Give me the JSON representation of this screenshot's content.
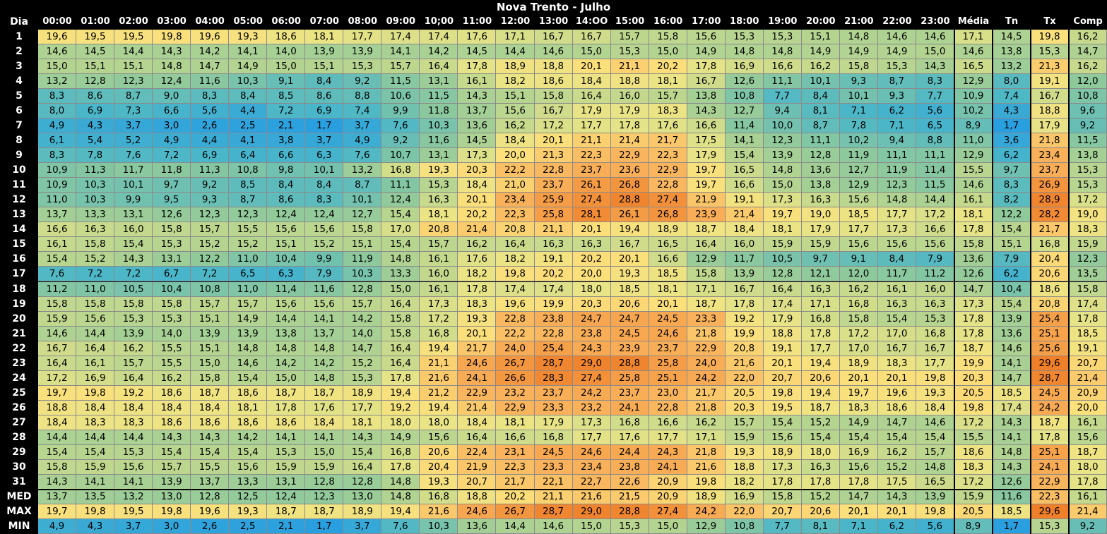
{
  "title": "Nova Trento - Julho",
  "chart_data": {
    "type": "table",
    "title": "Nova Trento - Julho",
    "row_header": "Dia",
    "columns": [
      "00:00",
      "01:00",
      "02:00",
      "03:00",
      "04:00",
      "05:00",
      "06:00",
      "07:00",
      "08:00",
      "09:00",
      "10;00",
      "11:00",
      "12:00",
      "13:00",
      "14:OO",
      "15:00",
      "16:00",
      "17:00",
      "18:00",
      "19:00",
      "20:00",
      "21:00",
      "22:00",
      "23:00",
      "Média",
      "Tn",
      "Tx",
      "Comp"
    ],
    "rows": [
      {
        "label": "1",
        "values": [
          "19,6",
          "19,5",
          "19,5",
          "19,8",
          "19,6",
          "19,3",
          "18,6",
          "18,1",
          "17,7",
          "17,4",
          "17,4",
          "17,6",
          "17,1",
          "16,7",
          "16,7",
          "15,7",
          "15,8",
          "15,6",
          "15,3",
          "15,3",
          "15,1",
          "14,8",
          "14,6",
          "14,6",
          "17,1",
          "14,5",
          "19,8",
          "16,2"
        ]
      },
      {
        "label": "2",
        "values": [
          "14,6",
          "14,5",
          "14,4",
          "14,3",
          "14,2",
          "14,1",
          "14,0",
          "13,9",
          "13,9",
          "14,1",
          "14,2",
          "14,5",
          "14,4",
          "14,6",
          "15,0",
          "15,3",
          "15,0",
          "14,9",
          "14,8",
          "14,8",
          "14,9",
          "14,9",
          "14,9",
          "15,0",
          "14,6",
          "13,8",
          "15,3",
          "14,7"
        ]
      },
      {
        "label": "3",
        "values": [
          "15,0",
          "15,1",
          "15,1",
          "14,8",
          "14,7",
          "14,9",
          "15,0",
          "15,1",
          "15,3",
          "15,7",
          "16,4",
          "17,8",
          "18,9",
          "18,8",
          "20,1",
          "21,1",
          "20,2",
          "17,8",
          "16,9",
          "16,6",
          "16,2",
          "15,8",
          "15,3",
          "14,3",
          "16,5",
          "13,2",
          "21,3",
          "16,2"
        ]
      },
      {
        "label": "4",
        "values": [
          "13,2",
          "12,8",
          "12,3",
          "12,4",
          "11,6",
          "10,3",
          "9,1",
          "8,4",
          "9,2",
          "11,5",
          "13,1",
          "16,1",
          "18,2",
          "18,6",
          "18,4",
          "18,8",
          "18,1",
          "16,7",
          "12,6",
          "11,1",
          "10,1",
          "9,3",
          "8,7",
          "8,3",
          "12,9",
          "8,0",
          "19,1",
          "12,0"
        ]
      },
      {
        "label": "5",
        "values": [
          "8,3",
          "8,6",
          "8,7",
          "9,0",
          "8,3",
          "8,4",
          "8,5",
          "8,6",
          "8,8",
          "10,6",
          "11,5",
          "14,3",
          "15,1",
          "15,8",
          "16,4",
          "16,0",
          "15,7",
          "13,8",
          "10,8",
          "7,7",
          "8,4",
          "10,1",
          "9,3",
          "7,7",
          "10,9",
          "7,4",
          "16,7",
          "10,8"
        ]
      },
      {
        "label": "6",
        "values": [
          "8,0",
          "6,9",
          "7,3",
          "6,6",
          "5,6",
          "4,4",
          "7,2",
          "6,9",
          "7,4",
          "9,9",
          "11,8",
          "13,7",
          "15,6",
          "16,7",
          "17,9",
          "17,9",
          "18,3",
          "14,3",
          "12,7",
          "9,4",
          "8,1",
          "7,1",
          "6,2",
          "5,6",
          "10,2",
          "4,3",
          "18,8",
          "9,6"
        ]
      },
      {
        "label": "7",
        "values": [
          "4,9",
          "4,3",
          "3,7",
          "3,0",
          "2,6",
          "2,5",
          "2,1",
          "1,7",
          "3,7",
          "7,6",
          "10,3",
          "13,6",
          "16,2",
          "17,2",
          "17,7",
          "17,8",
          "17,6",
          "16,6",
          "11,4",
          "10,0",
          "8,7",
          "7,8",
          "7,1",
          "6,5",
          "8,9",
          "1,7",
          "17,9",
          "9,2"
        ]
      },
      {
        "label": "8",
        "values": [
          "6,1",
          "5,4",
          "5,2",
          "4,9",
          "4,4",
          "4,1",
          "3,8",
          "3,7",
          "4,9",
          "9,2",
          "11,6",
          "14,5",
          "18,4",
          "20,1",
          "21,1",
          "21,4",
          "21,7",
          "17,5",
          "14,1",
          "12,3",
          "11,1",
          "10,2",
          "9,4",
          "8,8",
          "11,0",
          "3,6",
          "21,8",
          "11,5"
        ]
      },
      {
        "label": "9",
        "values": [
          "8,3",
          "7,8",
          "7,6",
          "7,2",
          "6,9",
          "6,4",
          "6,6",
          "6,3",
          "7,6",
          "10,7",
          "13,1",
          "17,3",
          "20,0",
          "21,3",
          "22,3",
          "22,9",
          "22,3",
          "17,9",
          "15,4",
          "13,9",
          "12,8",
          "11,9",
          "11,1",
          "11,1",
          "12,9",
          "6,2",
          "23,4",
          "13,8"
        ]
      },
      {
        "label": "10",
        "values": [
          "10,9",
          "11,3",
          "11,7",
          "11,8",
          "11,3",
          "10,8",
          "9,8",
          "10,1",
          "13,2",
          "16,8",
          "19,3",
          "20,3",
          "22,2",
          "22,8",
          "23,7",
          "23,6",
          "22,9",
          "19,7",
          "16,5",
          "14,8",
          "13,6",
          "12,7",
          "11,9",
          "11,4",
          "15,5",
          "9,7",
          "23,7",
          "15,3"
        ]
      },
      {
        "label": "11",
        "values": [
          "10,9",
          "10,3",
          "10,1",
          "9,7",
          "9,2",
          "8,5",
          "8,4",
          "8,4",
          "8,7",
          "11,1",
          "15,3",
          "18,4",
          "21,0",
          "23,7",
          "26,1",
          "26,8",
          "22,8",
          "19,7",
          "16,6",
          "15,0",
          "13,8",
          "12,9",
          "12,3",
          "11,5",
          "14,6",
          "8,3",
          "26,9",
          "15,3"
        ]
      },
      {
        "label": "12",
        "values": [
          "11,0",
          "10,3",
          "9,9",
          "9,5",
          "9,3",
          "8,7",
          "8,6",
          "8,3",
          "10,1",
          "12,4",
          "16,3",
          "20,1",
          "23,4",
          "25,9",
          "27,4",
          "28,8",
          "27,4",
          "21,9",
          "19,1",
          "17,3",
          "16,3",
          "15,6",
          "14,8",
          "14,4",
          "16,1",
          "8,2",
          "28,9",
          "17,2"
        ]
      },
      {
        "label": "13",
        "values": [
          "13,7",
          "13,3",
          "13,1",
          "12,6",
          "12,3",
          "12,3",
          "12,4",
          "12,4",
          "12,7",
          "15,4",
          "18,1",
          "20,2",
          "22,3",
          "25,8",
          "28,1",
          "26,1",
          "26,8",
          "23,9",
          "21,4",
          "19,7",
          "19,0",
          "18,5",
          "17,7",
          "17,2",
          "18,1",
          "12,2",
          "28,2",
          "19,0"
        ]
      },
      {
        "label": "14",
        "values": [
          "16,6",
          "16,3",
          "16,0",
          "15,8",
          "15,7",
          "15,5",
          "15,6",
          "15,6",
          "15,8",
          "17,0",
          "20,8",
          "21,4",
          "20,8",
          "21,1",
          "20,1",
          "19,4",
          "18,9",
          "18,7",
          "18,4",
          "18,1",
          "17,9",
          "17,7",
          "17,3",
          "16,6",
          "17,8",
          "15,4",
          "21,7",
          "18,3"
        ]
      },
      {
        "label": "15",
        "values": [
          "16,1",
          "15,8",
          "15,4",
          "15,3",
          "15,2",
          "15,2",
          "15,1",
          "15,2",
          "15,1",
          "15,4",
          "15,7",
          "16,2",
          "16,4",
          "16,3",
          "16,3",
          "16,7",
          "16,5",
          "16,4",
          "16,0",
          "15,9",
          "15,9",
          "15,6",
          "15,6",
          "15,6",
          "15,8",
          "15,1",
          "16,8",
          "15,9"
        ]
      },
      {
        "label": "16",
        "values": [
          "15,4",
          "15,2",
          "14,3",
          "13,1",
          "12,2",
          "11,0",
          "10,4",
          "9,9",
          "11,9",
          "14,8",
          "16,1",
          "17,6",
          "18,2",
          "19,1",
          "20,2",
          "20,1",
          "16,6",
          "12,9",
          "11,7",
          "10,5",
          "9,7",
          "9,1",
          "8,4",
          "7,9",
          "13,6",
          "7,9",
          "20,4",
          "12,3"
        ]
      },
      {
        "label": "17",
        "values": [
          "7,6",
          "7,2",
          "7,2",
          "6,7",
          "7,2",
          "6,5",
          "6,3",
          "7,9",
          "10,3",
          "13,3",
          "16,0",
          "18,2",
          "19,8",
          "20,2",
          "20,0",
          "19,3",
          "18,5",
          "15,8",
          "13,9",
          "12,8",
          "12,1",
          "12,0",
          "11,7",
          "11,2",
          "12,6",
          "6,2",
          "20,6",
          "13,5"
        ]
      },
      {
        "label": "18",
        "values": [
          "11,2",
          "11,0",
          "10,5",
          "10,4",
          "10,8",
          "11,0",
          "11,4",
          "11,6",
          "12,8",
          "15,0",
          "16,1",
          "17,8",
          "17,4",
          "17,4",
          "18,0",
          "18,5",
          "18,1",
          "17,1",
          "16,7",
          "16,4",
          "16,3",
          "16,2",
          "16,1",
          "16,0",
          "14,7",
          "10,4",
          "18,6",
          "15,8"
        ]
      },
      {
        "label": "19",
        "values": [
          "15,8",
          "15,8",
          "15,8",
          "15,8",
          "15,7",
          "15,7",
          "15,6",
          "15,6",
          "15,7",
          "16,4",
          "17,3",
          "18,3",
          "19,6",
          "19,9",
          "20,3",
          "20,6",
          "20,1",
          "18,7",
          "17,8",
          "17,4",
          "17,1",
          "16,8",
          "16,3",
          "16,3",
          "17,3",
          "15,4",
          "20,8",
          "17,4"
        ]
      },
      {
        "label": "20",
        "values": [
          "15,9",
          "15,6",
          "15,3",
          "15,3",
          "15,1",
          "14,9",
          "14,4",
          "14,1",
          "14,2",
          "15,8",
          "17,2",
          "19,3",
          "22,8",
          "23,8",
          "24,7",
          "24,7",
          "24,5",
          "23,3",
          "19,2",
          "17,9",
          "16,8",
          "15,8",
          "15,4",
          "15,3",
          "17,8",
          "13,9",
          "25,4",
          "17,8"
        ]
      },
      {
        "label": "21",
        "values": [
          "14,6",
          "14,4",
          "13,9",
          "14,0",
          "13,9",
          "13,9",
          "13,8",
          "13,7",
          "14,0",
          "15,8",
          "16,8",
          "20,1",
          "22,2",
          "22,8",
          "23,8",
          "24,5",
          "24,6",
          "21,8",
          "19,9",
          "18,8",
          "17,8",
          "17,2",
          "17,0",
          "16,8",
          "17,8",
          "13,6",
          "25,1",
          "18,5"
        ]
      },
      {
        "label": "22",
        "values": [
          "16,7",
          "16,4",
          "16,2",
          "15,5",
          "15,1",
          "14,8",
          "14,8",
          "14,8",
          "14,7",
          "16,4",
          "19,4",
          "21,7",
          "24,0",
          "25,4",
          "24,3",
          "23,9",
          "23,7",
          "22,9",
          "20,8",
          "19,1",
          "17,7",
          "17,0",
          "16,7",
          "16,7",
          "18,7",
          "14,6",
          "25,6",
          "19,1"
        ]
      },
      {
        "label": "23",
        "values": [
          "16,4",
          "16,1",
          "15,7",
          "15,5",
          "15,0",
          "14,6",
          "14,2",
          "14,2",
          "15,2",
          "16,4",
          "21,1",
          "24,6",
          "26,7",
          "28,7",
          "29,0",
          "28,8",
          "25,8",
          "24,0",
          "21,6",
          "20,1",
          "19,4",
          "18,9",
          "18,3",
          "17,7",
          "19,9",
          "14,1",
          "29,6",
          "20,7"
        ]
      },
      {
        "label": "24",
        "values": [
          "17,2",
          "16,9",
          "16,4",
          "16,2",
          "15,8",
          "15,4",
          "15,0",
          "14,8",
          "15,3",
          "17,8",
          "21,6",
          "24,1",
          "26,6",
          "28,3",
          "27,4",
          "25,8",
          "25,1",
          "24,2",
          "22,0",
          "20,7",
          "20,6",
          "20,1",
          "20,1",
          "19,8",
          "20,3",
          "14,7",
          "28,7",
          "21,4"
        ]
      },
      {
        "label": "25",
        "values": [
          "19,7",
          "19,8",
          "19,2",
          "18,6",
          "18,7",
          "18,6",
          "18,7",
          "18,7",
          "18,9",
          "19,4",
          "21,2",
          "22,9",
          "23,2",
          "23,7",
          "24,2",
          "23,7",
          "23,0",
          "21,7",
          "20,5",
          "19,8",
          "19,4",
          "19,7",
          "19,6",
          "19,3",
          "20,5",
          "18,5",
          "24,5",
          "20,9"
        ]
      },
      {
        "label": "26",
        "values": [
          "18,8",
          "18,4",
          "18,4",
          "18,4",
          "18,4",
          "18,1",
          "17,8",
          "17,6",
          "17,7",
          "19,2",
          "19,4",
          "21,4",
          "22,9",
          "23,3",
          "23,2",
          "24,1",
          "22,8",
          "21,8",
          "20,3",
          "19,5",
          "18,7",
          "18,3",
          "18,6",
          "18,4",
          "19,8",
          "17,4",
          "24,2",
          "20,0"
        ]
      },
      {
        "label": "27",
        "values": [
          "18,4",
          "18,3",
          "18,3",
          "18,6",
          "18,6",
          "18,6",
          "18,6",
          "18,4",
          "18,1",
          "18,0",
          "18,0",
          "18,4",
          "18,1",
          "17,9",
          "17,3",
          "16,8",
          "16,6",
          "16,2",
          "15,7",
          "15,4",
          "15,2",
          "14,9",
          "14,7",
          "14,6",
          "17,2",
          "14,3",
          "18,7",
          "16,1"
        ]
      },
      {
        "label": "28",
        "values": [
          "14,4",
          "14,4",
          "14,4",
          "14,3",
          "14,3",
          "14,2",
          "14,1",
          "14,1",
          "14,3",
          "14,9",
          "15,6",
          "16,4",
          "16,6",
          "16,8",
          "17,7",
          "17,6",
          "17,7",
          "17,1",
          "15,9",
          "15,6",
          "15,4",
          "15,4",
          "15,4",
          "15,4",
          "15,5",
          "14,1",
          "17,8",
          "15,6"
        ]
      },
      {
        "label": "29",
        "values": [
          "15,4",
          "15,4",
          "15,3",
          "15,4",
          "15,4",
          "15,4",
          "15,3",
          "15,0",
          "15,4",
          "16,8",
          "20,6",
          "22,4",
          "23,1",
          "24,5",
          "24,6",
          "24,4",
          "24,3",
          "21,8",
          "19,3",
          "18,9",
          "18,0",
          "16,9",
          "16,2",
          "15,7",
          "18,6",
          "14,8",
          "25,1",
          "18,7"
        ]
      },
      {
        "label": "30",
        "values": [
          "15,8",
          "15,9",
          "15,6",
          "15,7",
          "15,5",
          "15,6",
          "15,9",
          "15,9",
          "16,4",
          "17,8",
          "20,4",
          "21,9",
          "22,3",
          "23,3",
          "23,4",
          "23,8",
          "24,1",
          "21,6",
          "18,8",
          "17,3",
          "16,3",
          "15,6",
          "15,2",
          "14,8",
          "18,3",
          "14,3",
          "24,1",
          "18,0"
        ]
      },
      {
        "label": "31",
        "values": [
          "14,3",
          "14,1",
          "14,1",
          "13,9",
          "13,7",
          "13,3",
          "13,1",
          "12,8",
          "12,8",
          "14,8",
          "19,3",
          "20,7",
          "21,7",
          "22,1",
          "22,7",
          "22,6",
          "20,9",
          "19,8",
          "18,2",
          "17,8",
          "17,8",
          "17,8",
          "17,5",
          "16,5",
          "17,2",
          "12,6",
          "22,9",
          "17,8"
        ]
      },
      {
        "label": "MED",
        "values": [
          "13,7",
          "13,5",
          "13,2",
          "13,0",
          "12,8",
          "12,5",
          "12,4",
          "12,3",
          "13,0",
          "14,8",
          "16,8",
          "18,8",
          "20,2",
          "21,1",
          "21,6",
          "21,5",
          "20,9",
          "18,9",
          "16,9",
          "15,8",
          "15,2",
          "14,7",
          "14,3",
          "13,9",
          "15,9",
          "11,6",
          "22,3",
          "16,1"
        ]
      },
      {
        "label": "MAX",
        "values": [
          "19,7",
          "19,8",
          "19,5",
          "19,8",
          "19,6",
          "19,3",
          "18,7",
          "18,7",
          "18,9",
          "19,4",
          "21,6",
          "24,6",
          "26,7",
          "28,7",
          "29,0",
          "28,8",
          "27,4",
          "24,2",
          "22,0",
          "20,7",
          "20,6",
          "20,1",
          "20,1",
          "19,8",
          "20,5",
          "18,5",
          "29,6",
          "21,4"
        ]
      },
      {
        "label": "MIN",
        "values": [
          "4,9",
          "4,3",
          "3,7",
          "3,0",
          "2,6",
          "2,5",
          "2,1",
          "1,7",
          "3,7",
          "7,6",
          "10,3",
          "13,6",
          "14,4",
          "14,6",
          "15,0",
          "15,3",
          "15,0",
          "12,9",
          "10,8",
          "7,7",
          "8,1",
          "7,1",
          "6,2",
          "5,6",
          "8,9",
          "1,7",
          "15,3",
          "9,2"
        ]
      }
    ]
  }
}
